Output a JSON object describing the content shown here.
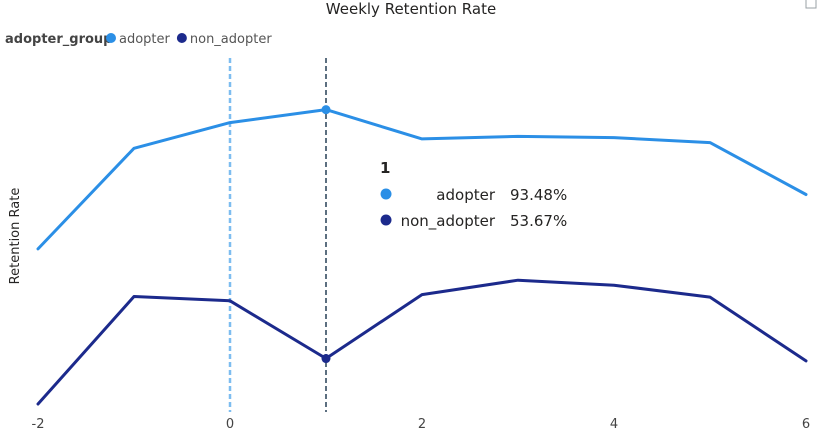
{
  "chart_data": {
    "type": "line",
    "title": "Weekly Retention Rate",
    "ylabel": "Retention Rate",
    "xlabel": "",
    "legend": {
      "title": "adopter_group",
      "position": "top-left"
    },
    "x": [
      -2,
      -1,
      0,
      1,
      2,
      3,
      4,
      5,
      6
    ],
    "x_ticks": [
      -2,
      0,
      2,
      4,
      6
    ],
    "xlim": [
      -2,
      6
    ],
    "ylim": [
      46.4,
      96.3
    ],
    "y_axis_visible": false,
    "grid": false,
    "series": [
      {
        "name": "adopter",
        "color": "#2b8fe6",
        "values": [
          71.2,
          87.3,
          91.4,
          93.48,
          88.8,
          89.2,
          89.0,
          88.2,
          79.9
        ]
      },
      {
        "name": "non_adopter",
        "color": "#1c2a8c",
        "values": [
          46.4,
          63.6,
          62.9,
          53.67,
          63.9,
          66.2,
          65.4,
          63.5,
          53.3
        ]
      }
    ],
    "reference_lines": [
      {
        "x": 0,
        "color": "#7dbdf0",
        "style": "dashed"
      },
      {
        "x": 1,
        "color": "#5c6f80",
        "style": "dashed"
      }
    ],
    "tooltip": {
      "title": "1",
      "items": [
        {
          "series": "adopter",
          "value": "93.48%",
          "color": "#2b8fe6"
        },
        {
          "series": "non_adopter",
          "value": "53.67%",
          "color": "#1c2a8c"
        }
      ]
    }
  }
}
